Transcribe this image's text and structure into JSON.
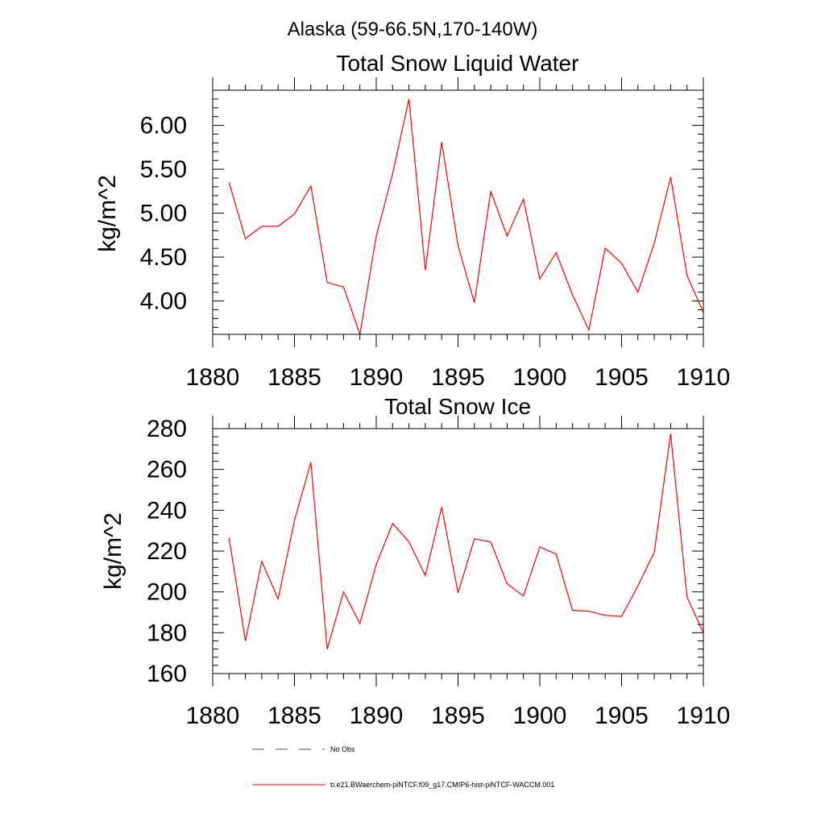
{
  "figure": {
    "main_title": "Alaska (59-66.5N,170-140W)",
    "legend": [
      {
        "label": "No Obs",
        "color": "#4a4aa0",
        "style": "dashed"
      },
      {
        "label": "b.e21.BWaerchem-piNTCF.f09_g17.CMIP6-hist-piNTCF-WACCM.001",
        "color": "#ff0000",
        "style": "solid"
      }
    ]
  },
  "chart_data": [
    {
      "type": "line",
      "title": "Total Snow Liquid Water",
      "xlabel": "",
      "ylabel": "kg/m^2",
      "xlim": [
        1880,
        1910
      ],
      "ylim": [
        3.62,
        6.4
      ],
      "x_ticks": [
        1880,
        1885,
        1890,
        1895,
        1900,
        1905,
        1910
      ],
      "y_ticks": [
        4.0,
        4.5,
        5.0,
        5.5,
        6.0
      ],
      "y_tick_labels": [
        "4.00",
        "4.50",
        "5.00",
        "5.50",
        "6.00"
      ],
      "grid": false,
      "series": [
        {
          "color": "#ff0000",
          "x": [
            1881,
            1882,
            1883,
            1884,
            1885,
            1886,
            1887,
            1888,
            1889,
            1890,
            1891,
            1892,
            1893,
            1894,
            1895,
            1896,
            1897,
            1898,
            1899,
            1900,
            1901,
            1902,
            1903,
            1904,
            1905,
            1906,
            1907,
            1908,
            1909,
            1910
          ],
          "values": [
            5.35,
            4.71,
            4.85,
            4.85,
            4.99,
            5.31,
            4.21,
            4.16,
            3.62,
            4.74,
            5.45,
            6.3,
            4.35,
            5.81,
            4.63,
            3.98,
            5.25,
            4.74,
            5.16,
            4.25,
            4.55,
            4.07,
            3.67,
            4.6,
            4.43,
            4.1,
            4.66,
            5.41,
            4.29,
            3.87
          ]
        }
      ]
    },
    {
      "type": "line",
      "title": "Total Snow Ice",
      "xlabel": "",
      "ylabel": "kg/m^2",
      "xlim": [
        1880,
        1910
      ],
      "ylim": [
        160,
        280
      ],
      "x_ticks": [
        1880,
        1885,
        1890,
        1895,
        1900,
        1905,
        1910
      ],
      "y_ticks": [
        160,
        180,
        200,
        220,
        240,
        260,
        280
      ],
      "y_tick_labels": [
        "160",
        "180",
        "200",
        "220",
        "240",
        "260",
        "280"
      ],
      "grid": false,
      "series": [
        {
          "color": "#ff0000",
          "x": [
            1881,
            1882,
            1883,
            1884,
            1885,
            1886,
            1887,
            1888,
            1889,
            1890,
            1891,
            1892,
            1893,
            1894,
            1895,
            1896,
            1897,
            1898,
            1899,
            1900,
            1901,
            1902,
            1903,
            1904,
            1905,
            1906,
            1907,
            1908,
            1909,
            1910
          ],
          "values": [
            226.5,
            176.0,
            215.0,
            196.5,
            235.0,
            263.5,
            172.0,
            200.0,
            184.5,
            213.5,
            233.5,
            224.5,
            208.0,
            241.5,
            199.5,
            226.0,
            224.5,
            204.0,
            198.0,
            222.0,
            218.5,
            191.0,
            190.5,
            188.5,
            188.0,
            203.0,
            219.5,
            277.5,
            197.5,
            180.0
          ]
        }
      ]
    }
  ]
}
